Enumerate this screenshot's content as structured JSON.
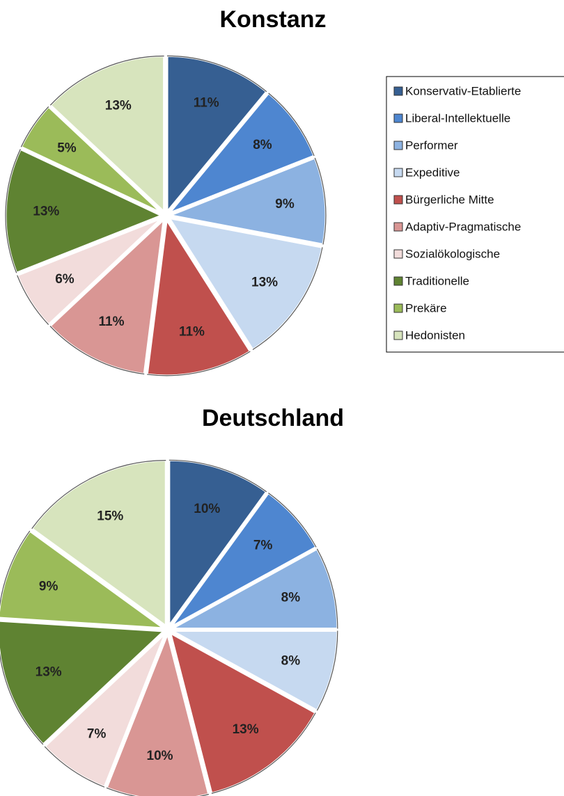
{
  "categories": [
    "Konservativ-Etablierte",
    "Liberal-Intellektuelle",
    "Performer",
    "Expeditive",
    "Bürgerliche Mitte",
    "Adaptiv-Pragmatische",
    "Sozialökologische",
    "Traditionelle",
    "Prekäre",
    "Hedonisten"
  ],
  "colors": [
    "#365f92",
    "#4e86d0",
    "#8cb2e1",
    "#c6d9f0",
    "#c0504d",
    "#d99694",
    "#f2dcdb",
    "#5f8332",
    "#9bbb59",
    "#d7e4bd"
  ],
  "chart_data": [
    {
      "type": "pie",
      "title": "Konstanz",
      "values": [
        11,
        8,
        9,
        13,
        11,
        11,
        6,
        13,
        5,
        13
      ],
      "value_labels": [
        "11%",
        "8%",
        "9%",
        "13%",
        "11%",
        "11%",
        "6%",
        "13%",
        "5%",
        "13%"
      ],
      "legend": "right"
    },
    {
      "type": "pie",
      "title": "Deutschland",
      "values": [
        10,
        7,
        8,
        8,
        13,
        10,
        7,
        13,
        9,
        15
      ],
      "value_labels": [
        "10%",
        "7%",
        "8%",
        "8%",
        "13%",
        "10%",
        "7%",
        "13%",
        "9%",
        "15%"
      ]
    }
  ]
}
